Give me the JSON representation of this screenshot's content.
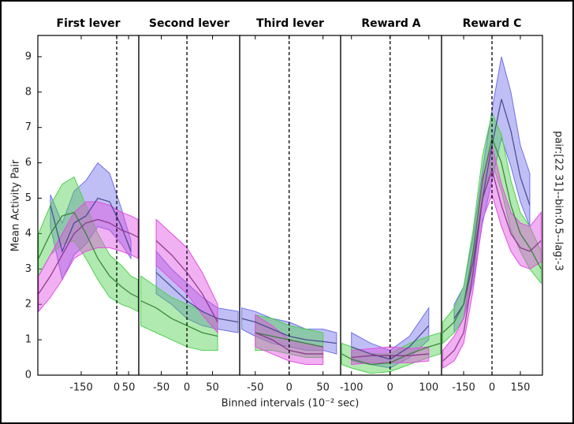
{
  "axes": {
    "y_label": "Mean Activity Pair",
    "x_label": "Binned intervals (10⁻² sec)",
    "side_label": "pair:[22 31]--bin:0.5--lag:-3",
    "ylim": [
      0,
      9.6
    ],
    "yticks": [
      0,
      1,
      2,
      3,
      4,
      5,
      6,
      7,
      8,
      9
    ]
  },
  "chart_data": [
    {
      "type": "band",
      "title": "First lever",
      "xlim": [
        -333,
        93
      ],
      "xticks": [
        -150,
        0,
        50
      ],
      "x": [
        -330,
        -280,
        -230,
        -180,
        -130,
        -80,
        -30,
        20,
        60,
        90
      ],
      "series": [
        {
          "color": "#7070e8",
          "values": [
            null,
            4.8,
            3.5,
            4.3,
            4.5,
            5.0,
            4.9,
            4.2,
            3.5,
            null
          ],
          "lower": [
            null,
            4.2,
            2.7,
            3.4,
            3.7,
            4.2,
            4.1,
            3.7,
            3.3,
            null
          ],
          "upper": [
            null,
            5.1,
            4.3,
            5.2,
            5.5,
            6.0,
            5.7,
            4.7,
            3.8,
            null
          ]
        },
        {
          "color": "#50d050",
          "values": [
            3.3,
            4.0,
            4.5,
            4.6,
            4.0,
            3.3,
            2.8,
            2.5,
            2.3,
            2.2
          ],
          "lower": [
            2.8,
            3.4,
            3.7,
            3.8,
            3.3,
            2.7,
            2.2,
            2.0,
            1.9,
            1.8
          ],
          "upper": [
            4.0,
            4.8,
            5.4,
            5.6,
            4.8,
            4.0,
            3.4,
            3.1,
            2.8,
            2.7
          ]
        },
        {
          "color": "#e050e0",
          "values": [
            2.3,
            2.8,
            3.4,
            4.0,
            4.3,
            4.4,
            4.3,
            4.1,
            4.0,
            3.9
          ],
          "lower": [
            1.8,
            2.2,
            2.7,
            3.3,
            3.5,
            3.6,
            3.6,
            3.5,
            3.4,
            3.3
          ],
          "upper": [
            2.8,
            3.4,
            4.0,
            4.6,
            4.9,
            4.9,
            4.8,
            4.6,
            4.5,
            4.4
          ]
        }
      ]
    },
    {
      "type": "band",
      "title": "Second lever",
      "xlim": [
        -94,
        103
      ],
      "xticks": [
        -50,
        0,
        50
      ],
      "x": [
        -90,
        -60,
        -30,
        0,
        30,
        60,
        100
      ],
      "series": [
        {
          "color": "#7070e8",
          "values": [
            null,
            2.9,
            2.5,
            2.1,
            1.8,
            1.6,
            1.5
          ],
          "lower": [
            null,
            2.3,
            2.0,
            1.6,
            1.4,
            1.3,
            1.2
          ],
          "upper": [
            null,
            3.5,
            3.0,
            2.6,
            2.2,
            1.9,
            1.8
          ]
        },
        {
          "color": "#50d050",
          "values": [
            2.1,
            1.9,
            1.6,
            1.4,
            1.2,
            1.1,
            null
          ],
          "lower": [
            1.4,
            1.2,
            1.0,
            0.8,
            0.7,
            0.7,
            null
          ],
          "upper": [
            2.8,
            2.5,
            2.2,
            2.0,
            1.8,
            1.6,
            null
          ]
        },
        {
          "color": "#e050e0",
          "values": [
            null,
            3.8,
            3.4,
            2.9,
            2.3,
            1.5,
            null
          ],
          "lower": [
            null,
            3.1,
            2.7,
            2.3,
            1.7,
            1.2,
            null
          ],
          "upper": [
            null,
            4.4,
            4.0,
            3.6,
            2.9,
            2.0,
            null
          ]
        }
      ]
    },
    {
      "type": "band",
      "title": "Third lever",
      "xlim": [
        -73,
        76
      ],
      "xticks": [
        -50,
        0,
        50
      ],
      "x": [
        -70,
        -50,
        -25,
        0,
        25,
        50,
        70
      ],
      "series": [
        {
          "color": "#7070e8",
          "values": [
            1.6,
            1.5,
            1.3,
            1.1,
            1.0,
            0.95,
            0.9
          ],
          "lower": [
            1.3,
            1.1,
            0.9,
            0.8,
            0.7,
            0.7,
            0.6
          ],
          "upper": [
            1.9,
            1.8,
            1.6,
            1.5,
            1.3,
            1.3,
            1.2
          ]
        },
        {
          "color": "#50d050",
          "values": [
            null,
            1.2,
            1.1,
            1.0,
            0.9,
            0.8,
            null
          ],
          "lower": [
            null,
            0.7,
            0.7,
            0.6,
            0.5,
            0.5,
            null
          ],
          "upper": [
            null,
            1.7,
            1.6,
            1.4,
            1.3,
            1.2,
            null
          ]
        },
        {
          "color": "#e050e0",
          "values": [
            null,
            1.2,
            1.0,
            0.7,
            0.6,
            0.6,
            null
          ],
          "lower": [
            null,
            0.8,
            0.6,
            0.4,
            0.3,
            0.3,
            null
          ],
          "upper": [
            null,
            1.7,
            1.4,
            1.0,
            0.9,
            0.8,
            null
          ]
        }
      ]
    },
    {
      "type": "band",
      "title": "Reward A",
      "xlim": [
        -128,
        133
      ],
      "xticks": [
        -100,
        0,
        100
      ],
      "x": [
        -125,
        -100,
        -50,
        0,
        50,
        100,
        130
      ],
      "series": [
        {
          "color": "#7070e8",
          "values": [
            null,
            0.8,
            0.6,
            0.45,
            0.8,
            1.4,
            null
          ],
          "lower": [
            null,
            0.4,
            0.3,
            0.2,
            0.5,
            1.0,
            null
          ],
          "upper": [
            null,
            1.2,
            0.9,
            0.7,
            1.1,
            1.9,
            null
          ]
        },
        {
          "color": "#50d050",
          "values": [
            0.6,
            0.45,
            0.3,
            0.35,
            0.6,
            0.8,
            0.9
          ],
          "lower": [
            0.3,
            0.2,
            0.05,
            0.1,
            0.3,
            0.5,
            0.6
          ],
          "upper": [
            0.9,
            0.8,
            0.6,
            0.6,
            0.9,
            1.1,
            1.2
          ]
        },
        {
          "color": "#e050e0",
          "values": [
            null,
            0.5,
            0.55,
            0.55,
            0.55,
            0.6,
            null
          ],
          "lower": [
            null,
            0.3,
            0.35,
            0.35,
            0.35,
            0.4,
            null
          ],
          "upper": [
            null,
            0.7,
            0.75,
            0.8,
            0.75,
            0.8,
            null
          ]
        }
      ]
    },
    {
      "type": "band",
      "title": "Reward C",
      "xlim": [
        -267,
        267
      ],
      "xticks": [
        -150,
        0,
        150
      ],
      "x": [
        -260,
        -200,
        -150,
        -100,
        -50,
        0,
        50,
        100,
        150,
        200,
        260
      ],
      "series": [
        {
          "color": "#7070e8",
          "values": [
            null,
            1.6,
            2.0,
            3.2,
            5.0,
            6.5,
            7.8,
            6.9,
            5.6,
            4.8,
            null
          ],
          "lower": [
            null,
            1.2,
            1.6,
            2.6,
            4.3,
            5.5,
            6.7,
            5.9,
            4.9,
            4.2,
            null
          ],
          "upper": [
            null,
            2.0,
            2.5,
            3.9,
            5.8,
            7.5,
            9.0,
            8.0,
            6.5,
            5.7,
            null
          ]
        },
        {
          "color": "#50d050",
          "values": [
            1.2,
            1.5,
            2.0,
            3.5,
            5.5,
            6.7,
            6.0,
            4.8,
            4.0,
            3.6,
            3.0
          ],
          "lower": [
            0.9,
            1.2,
            1.6,
            3.0,
            4.9,
            6.0,
            5.2,
            4.1,
            3.5,
            3.0,
            2.6
          ],
          "upper": [
            1.5,
            1.9,
            2.5,
            4.1,
            6.2,
            7.4,
            6.8,
            5.5,
            4.6,
            4.2,
            3.5
          ]
        },
        {
          "color": "#e050e0",
          "values": [
            0.4,
            0.7,
            1.2,
            2.9,
            5.0,
            5.8,
            4.8,
            4.0,
            3.6,
            3.5,
            3.8
          ],
          "lower": [
            0.2,
            0.4,
            0.9,
            2.4,
            4.4,
            5.1,
            4.2,
            3.5,
            3.1,
            3.0,
            3.2
          ],
          "upper": [
            0.7,
            1.1,
            1.6,
            3.5,
            5.6,
            6.5,
            5.4,
            4.6,
            4.3,
            4.2,
            4.6
          ]
        }
      ]
    }
  ]
}
